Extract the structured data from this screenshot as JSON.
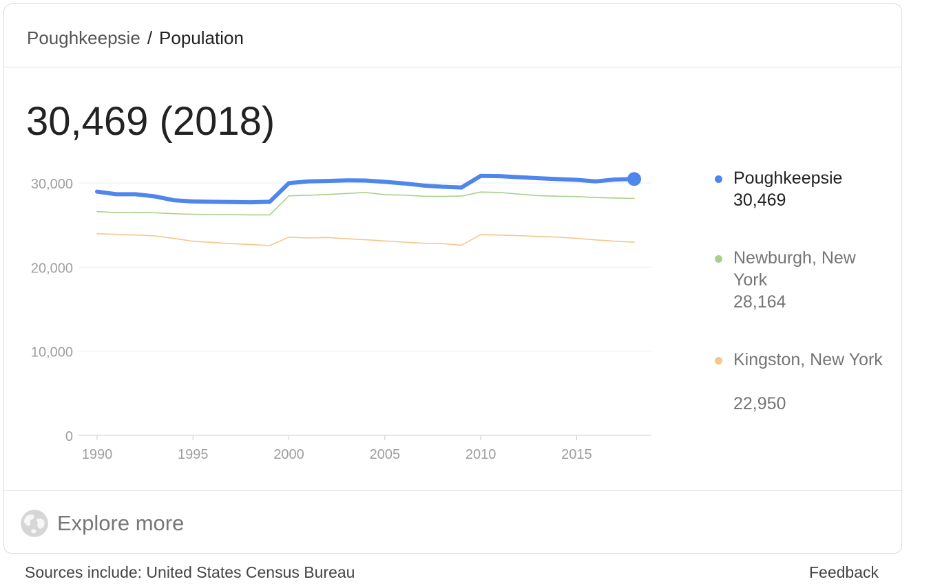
{
  "breadcrumb": {
    "parent": "Poughkeepsie",
    "separator": "/",
    "current": "Population"
  },
  "headline": "30,469 (2018)",
  "explore": {
    "label": "Explore more",
    "icon": "globe-icon"
  },
  "footer": {
    "sources": "Sources include: United States Census Bureau",
    "feedback": "Feedback"
  },
  "legend": [
    {
      "name": "Poughkeepsie",
      "value": "30,469",
      "color": "#4f86ec"
    },
    {
      "name": "Newburgh, New York",
      "value": "28,164",
      "color": "#a8d08d"
    },
    {
      "name": "Kingston, New York",
      "value": "22,950",
      "color": "#f6c68a"
    }
  ],
  "chart_data": {
    "type": "line",
    "x": [
      1990,
      1991,
      1992,
      1993,
      1994,
      1995,
      1996,
      1997,
      1998,
      1999,
      2000,
      2001,
      2002,
      2003,
      2004,
      2005,
      2006,
      2007,
      2008,
      2009,
      2010,
      2011,
      2012,
      2013,
      2014,
      2015,
      2016,
      2017,
      2018
    ],
    "series": [
      {
        "name": "Poughkeepsie",
        "color": "#4f86ec",
        "values": [
          28970,
          28660,
          28660,
          28410,
          27950,
          27800,
          27760,
          27730,
          27700,
          27760,
          29980,
          30180,
          30240,
          30310,
          30290,
          30130,
          29940,
          29700,
          29550,
          29460,
          30840,
          30810,
          30690,
          30560,
          30460,
          30370,
          30190,
          30410,
          30469
        ]
      },
      {
        "name": "Newburgh, New York",
        "color": "#a8d08d",
        "values": [
          26590,
          26480,
          26510,
          26460,
          26350,
          26270,
          26240,
          26230,
          26210,
          26200,
          28470,
          28540,
          28630,
          28750,
          28870,
          28600,
          28550,
          28420,
          28400,
          28440,
          28920,
          28870,
          28670,
          28500,
          28420,
          28380,
          28270,
          28210,
          28164
        ]
      },
      {
        "name": "Kingston, New York",
        "color": "#f6c68a",
        "values": [
          23970,
          23890,
          23810,
          23710,
          23410,
          23070,
          22940,
          22790,
          22680,
          22560,
          23560,
          23460,
          23520,
          23380,
          23250,
          23110,
          22970,
          22840,
          22790,
          22590,
          23880,
          23800,
          23730,
          23650,
          23570,
          23410,
          23230,
          23080,
          22950
        ]
      }
    ],
    "xticks": [
      1990,
      1995,
      2000,
      2005,
      2010,
      2015
    ],
    "yticks": [
      0,
      10000,
      20000,
      30000
    ],
    "ytick_labels": [
      "0",
      "10,000",
      "20,000",
      "30,000"
    ],
    "ylim": [
      0,
      30000
    ],
    "grid": true,
    "legend_position": "right"
  }
}
